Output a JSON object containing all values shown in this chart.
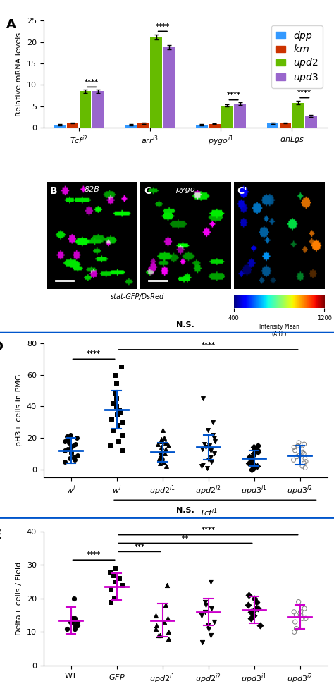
{
  "panel_A": {
    "groups": [
      "Tcf i2",
      "arr i3",
      "pygo i1",
      "dnLgs"
    ],
    "bars": {
      "dpp": [
        0.7,
        0.7,
        0.7,
        1.0
      ],
      "krn": [
        1.1,
        1.0,
        0.9,
        1.1
      ],
      "upd2": [
        8.5,
        21.2,
        5.2,
        5.8
      ],
      "upd3": [
        8.5,
        18.8,
        5.6,
        2.8
      ]
    },
    "errors": {
      "dpp": [
        0.1,
        0.1,
        0.1,
        0.1
      ],
      "krn": [
        0.15,
        0.12,
        0.1,
        0.15
      ],
      "upd2": [
        0.4,
        0.6,
        0.3,
        0.4
      ],
      "upd3": [
        0.35,
        0.55,
        0.3,
        0.25
      ]
    },
    "colors": {
      "dpp": "#3399FF",
      "krn": "#CC3300",
      "upd2": "#66BB00",
      "upd3": "#9966CC"
    },
    "ylabel": "Relative mRNA levels",
    "ylim": [
      0,
      25
    ],
    "yticks": [
      0,
      5,
      10,
      15,
      20,
      25
    ],
    "sig_labels": [
      "****",
      "****",
      "****",
      "****"
    ]
  },
  "panel_D": {
    "xlabel_groups": [
      "w^i",
      "w^i",
      "upd2^{i1}",
      "upd2^{i2}",
      "upd3^{i1}",
      "upd3^{i2}"
    ],
    "means": [
      12,
      38,
      11,
      14,
      7,
      9
    ],
    "errors": [
      8,
      12,
      6,
      8,
      5,
      6
    ],
    "ylabel": "pH3+ cells in PMG",
    "ylim": [
      -5,
      80
    ],
    "yticks": [
      0,
      20,
      40,
      60,
      80
    ],
    "color": "#0066CC",
    "marker_colors": [
      "black",
      "black",
      "black",
      "black",
      "black",
      "gray"
    ],
    "data_points": [
      [
        5,
        6,
        7,
        8,
        9,
        10,
        11,
        12,
        13,
        14,
        15,
        16,
        17,
        18,
        19,
        20,
        21,
        22
      ],
      [
        12,
        15,
        18,
        22,
        25,
        28,
        30,
        32,
        35,
        36,
        38,
        40,
        42,
        45,
        48,
        55,
        60,
        65
      ],
      [
        2,
        4,
        5,
        7,
        8,
        9,
        10,
        11,
        12,
        13,
        14,
        15,
        16,
        17,
        18,
        19,
        20,
        25
      ],
      [
        1,
        2,
        3,
        5,
        6,
        8,
        10,
        12,
        13,
        14,
        15,
        16,
        18,
        20,
        22,
        25,
        30,
        45
      ],
      [
        0,
        1,
        2,
        3,
        4,
        5,
        6,
        7,
        8,
        9,
        10,
        11,
        12,
        13,
        14,
        15
      ],
      [
        1,
        2,
        4,
        5,
        6,
        7,
        8,
        9,
        10,
        11,
        12,
        13,
        14,
        15,
        16,
        17
      ]
    ]
  },
  "panel_E": {
    "xlabel_groups": [
      "WT",
      "GFP",
      "upd2^{i1}",
      "upd2^{i2}",
      "upd3^{i1}",
      "upd3^{i2}"
    ],
    "means": [
      13.5,
      23.5,
      13.5,
      16,
      16.5,
      14.5
    ],
    "errors": [
      4,
      4,
      5,
      4,
      4,
      3.5
    ],
    "ylabel": "Delta+ cells / Field",
    "ylim": [
      0,
      40
    ],
    "yticks": [
      0,
      10,
      20,
      30,
      40
    ],
    "color": "#CC00CC",
    "data_points": [
      [
        11,
        11,
        12,
        12,
        13,
        13,
        13,
        14,
        14,
        20
      ],
      [
        19,
        20,
        23,
        24,
        25,
        26,
        27,
        27,
        28,
        29
      ],
      [
        8,
        9,
        9,
        10,
        11,
        12,
        13,
        14,
        15,
        18,
        24
      ],
      [
        7,
        9,
        11,
        12,
        13,
        15,
        16,
        17,
        18,
        19,
        25
      ],
      [
        12,
        14,
        15,
        16,
        16,
        17,
        17,
        18,
        19,
        20,
        21
      ],
      [
        10,
        11,
        13,
        14,
        14,
        15,
        15,
        16,
        16,
        17,
        19
      ]
    ]
  },
  "bg_color": "#000000",
  "image_bg": "#1a1a1a"
}
